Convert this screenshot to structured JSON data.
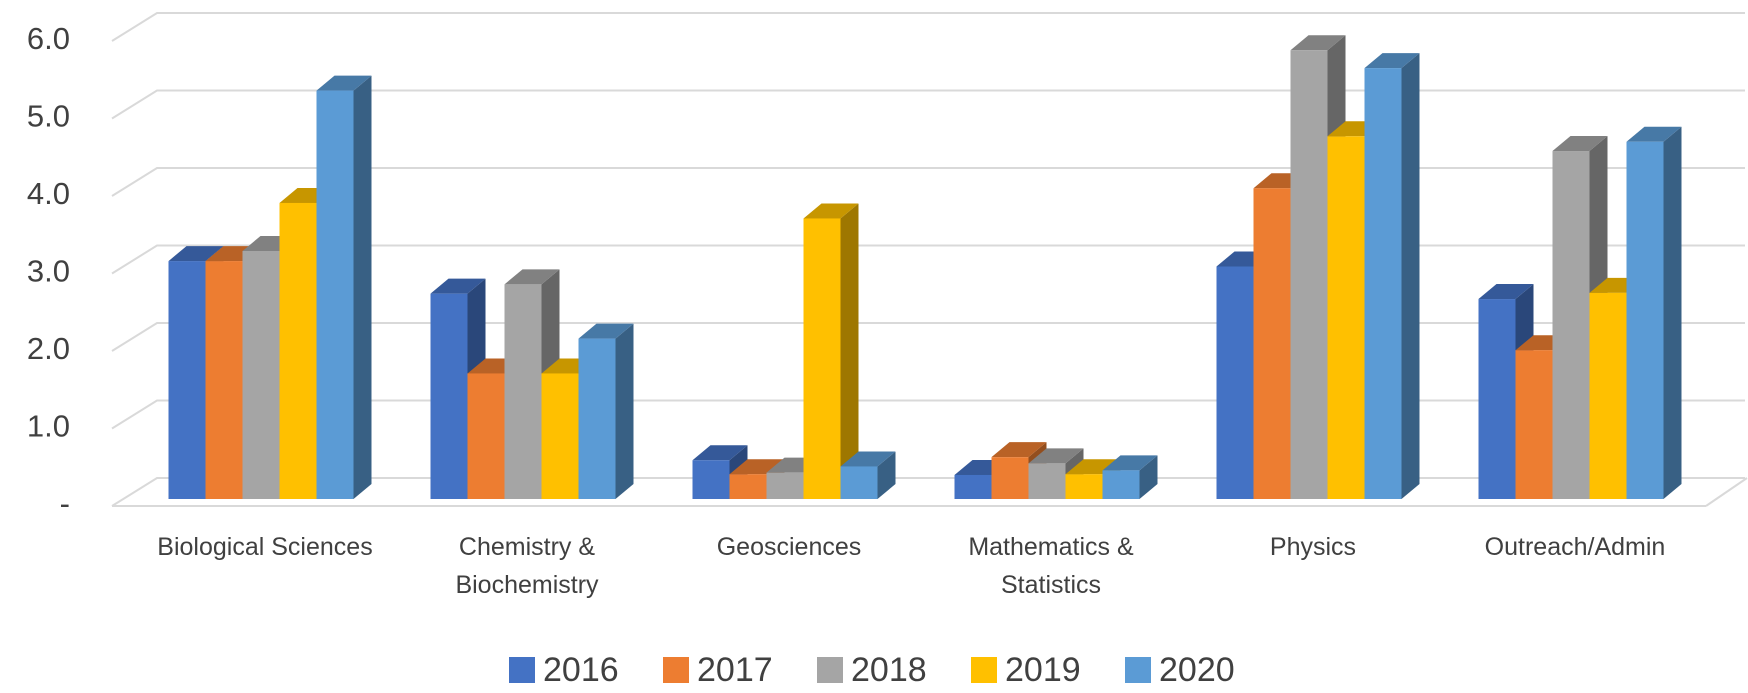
{
  "chart_data": {
    "type": "bar3d",
    "categories": [
      "Biological Sciences",
      "Chemistry & Biochemistry",
      "Geosciences",
      "Mathematics & Statistics",
      "Physics",
      "Outreach/Admin"
    ],
    "series": [
      {
        "name": "2016",
        "color": "#4472c4",
        "values": [
          3.07,
          2.65,
          0.5,
          0.31,
          3.0,
          2.58
        ]
      },
      {
        "name": "2017",
        "color": "#ed7d31",
        "values": [
          3.07,
          1.62,
          0.32,
          0.54,
          4.01,
          1.92
        ]
      },
      {
        "name": "2018",
        "color": "#a5a5a5",
        "values": [
          3.2,
          2.77,
          0.34,
          0.46,
          5.79,
          4.49
        ]
      },
      {
        "name": "2019",
        "color": "#ffc000",
        "values": [
          3.82,
          1.62,
          3.62,
          0.32,
          4.68,
          2.66
        ]
      },
      {
        "name": "2020",
        "color": "#5b9bd5",
        "values": [
          5.27,
          2.07,
          0.42,
          0.37,
          5.56,
          4.61
        ]
      }
    ],
    "ylim": [
      0,
      6
    ],
    "yticks": [
      {
        "value": 0,
        "label": "-"
      },
      {
        "value": 1,
        "label": "1.0"
      },
      {
        "value": 2,
        "label": "2.0"
      },
      {
        "value": 3,
        "label": "3.0"
      },
      {
        "value": 4,
        "label": "4.0"
      },
      {
        "value": 5,
        "label": "5.0"
      },
      {
        "value": 6,
        "label": "6.0"
      }
    ],
    "grid": true,
    "legend": "bottom"
  }
}
